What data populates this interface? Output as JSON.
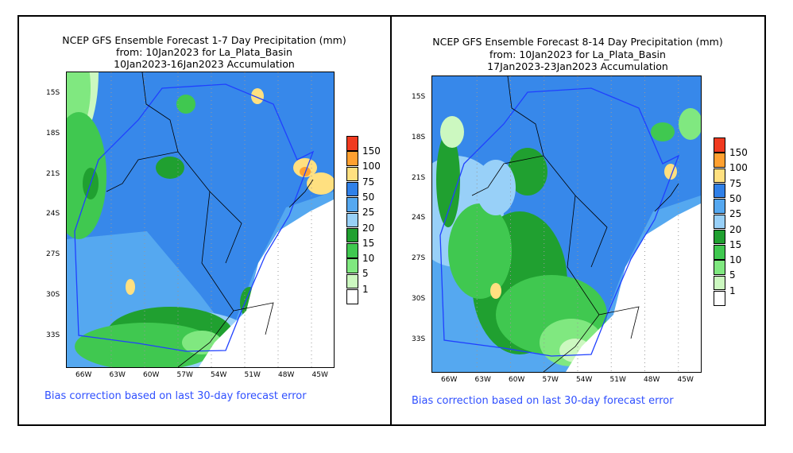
{
  "panels": [
    {
      "title": "NCEP GFS Ensemble Forecast 1-7 Day Precipitation (mm)",
      "from": "from: 10Jan2023   for La_Plata_Basin",
      "accum": "10Jan2023-16Jan2023 Accumulation",
      "note": "Bias correction based on last 30-day forecast error"
    },
    {
      "title": "NCEP GFS Ensemble Forecast 8-14 Day Precipitation (mm)",
      "from": "from: 10Jan2023   for La_Plata_Basin",
      "accum": "17Jan2023-23Jan2023 Accumulation",
      "note": "Bias correction based on last 30-day forecast error"
    }
  ],
  "lat_ticks": [
    "15S",
    "18S",
    "21S",
    "24S",
    "27S",
    "30S",
    "33S"
  ],
  "lon_ticks": [
    "66W",
    "63W",
    "60W",
    "57W",
    "54W",
    "51W",
    "48W",
    "45W"
  ],
  "legend": {
    "labels": [
      "150",
      "100",
      "75",
      "50",
      "25",
      "20",
      "15",
      "10",
      "5",
      "1"
    ],
    "colors": [
      "#f03a20",
      "#ffa030",
      "#ffe080",
      "#3080e8",
      "#55a8f0",
      "#98d0f8",
      "#20a030",
      "#40c850",
      "#80e880",
      "#ccf8c0",
      "#ffffff"
    ]
  }
}
